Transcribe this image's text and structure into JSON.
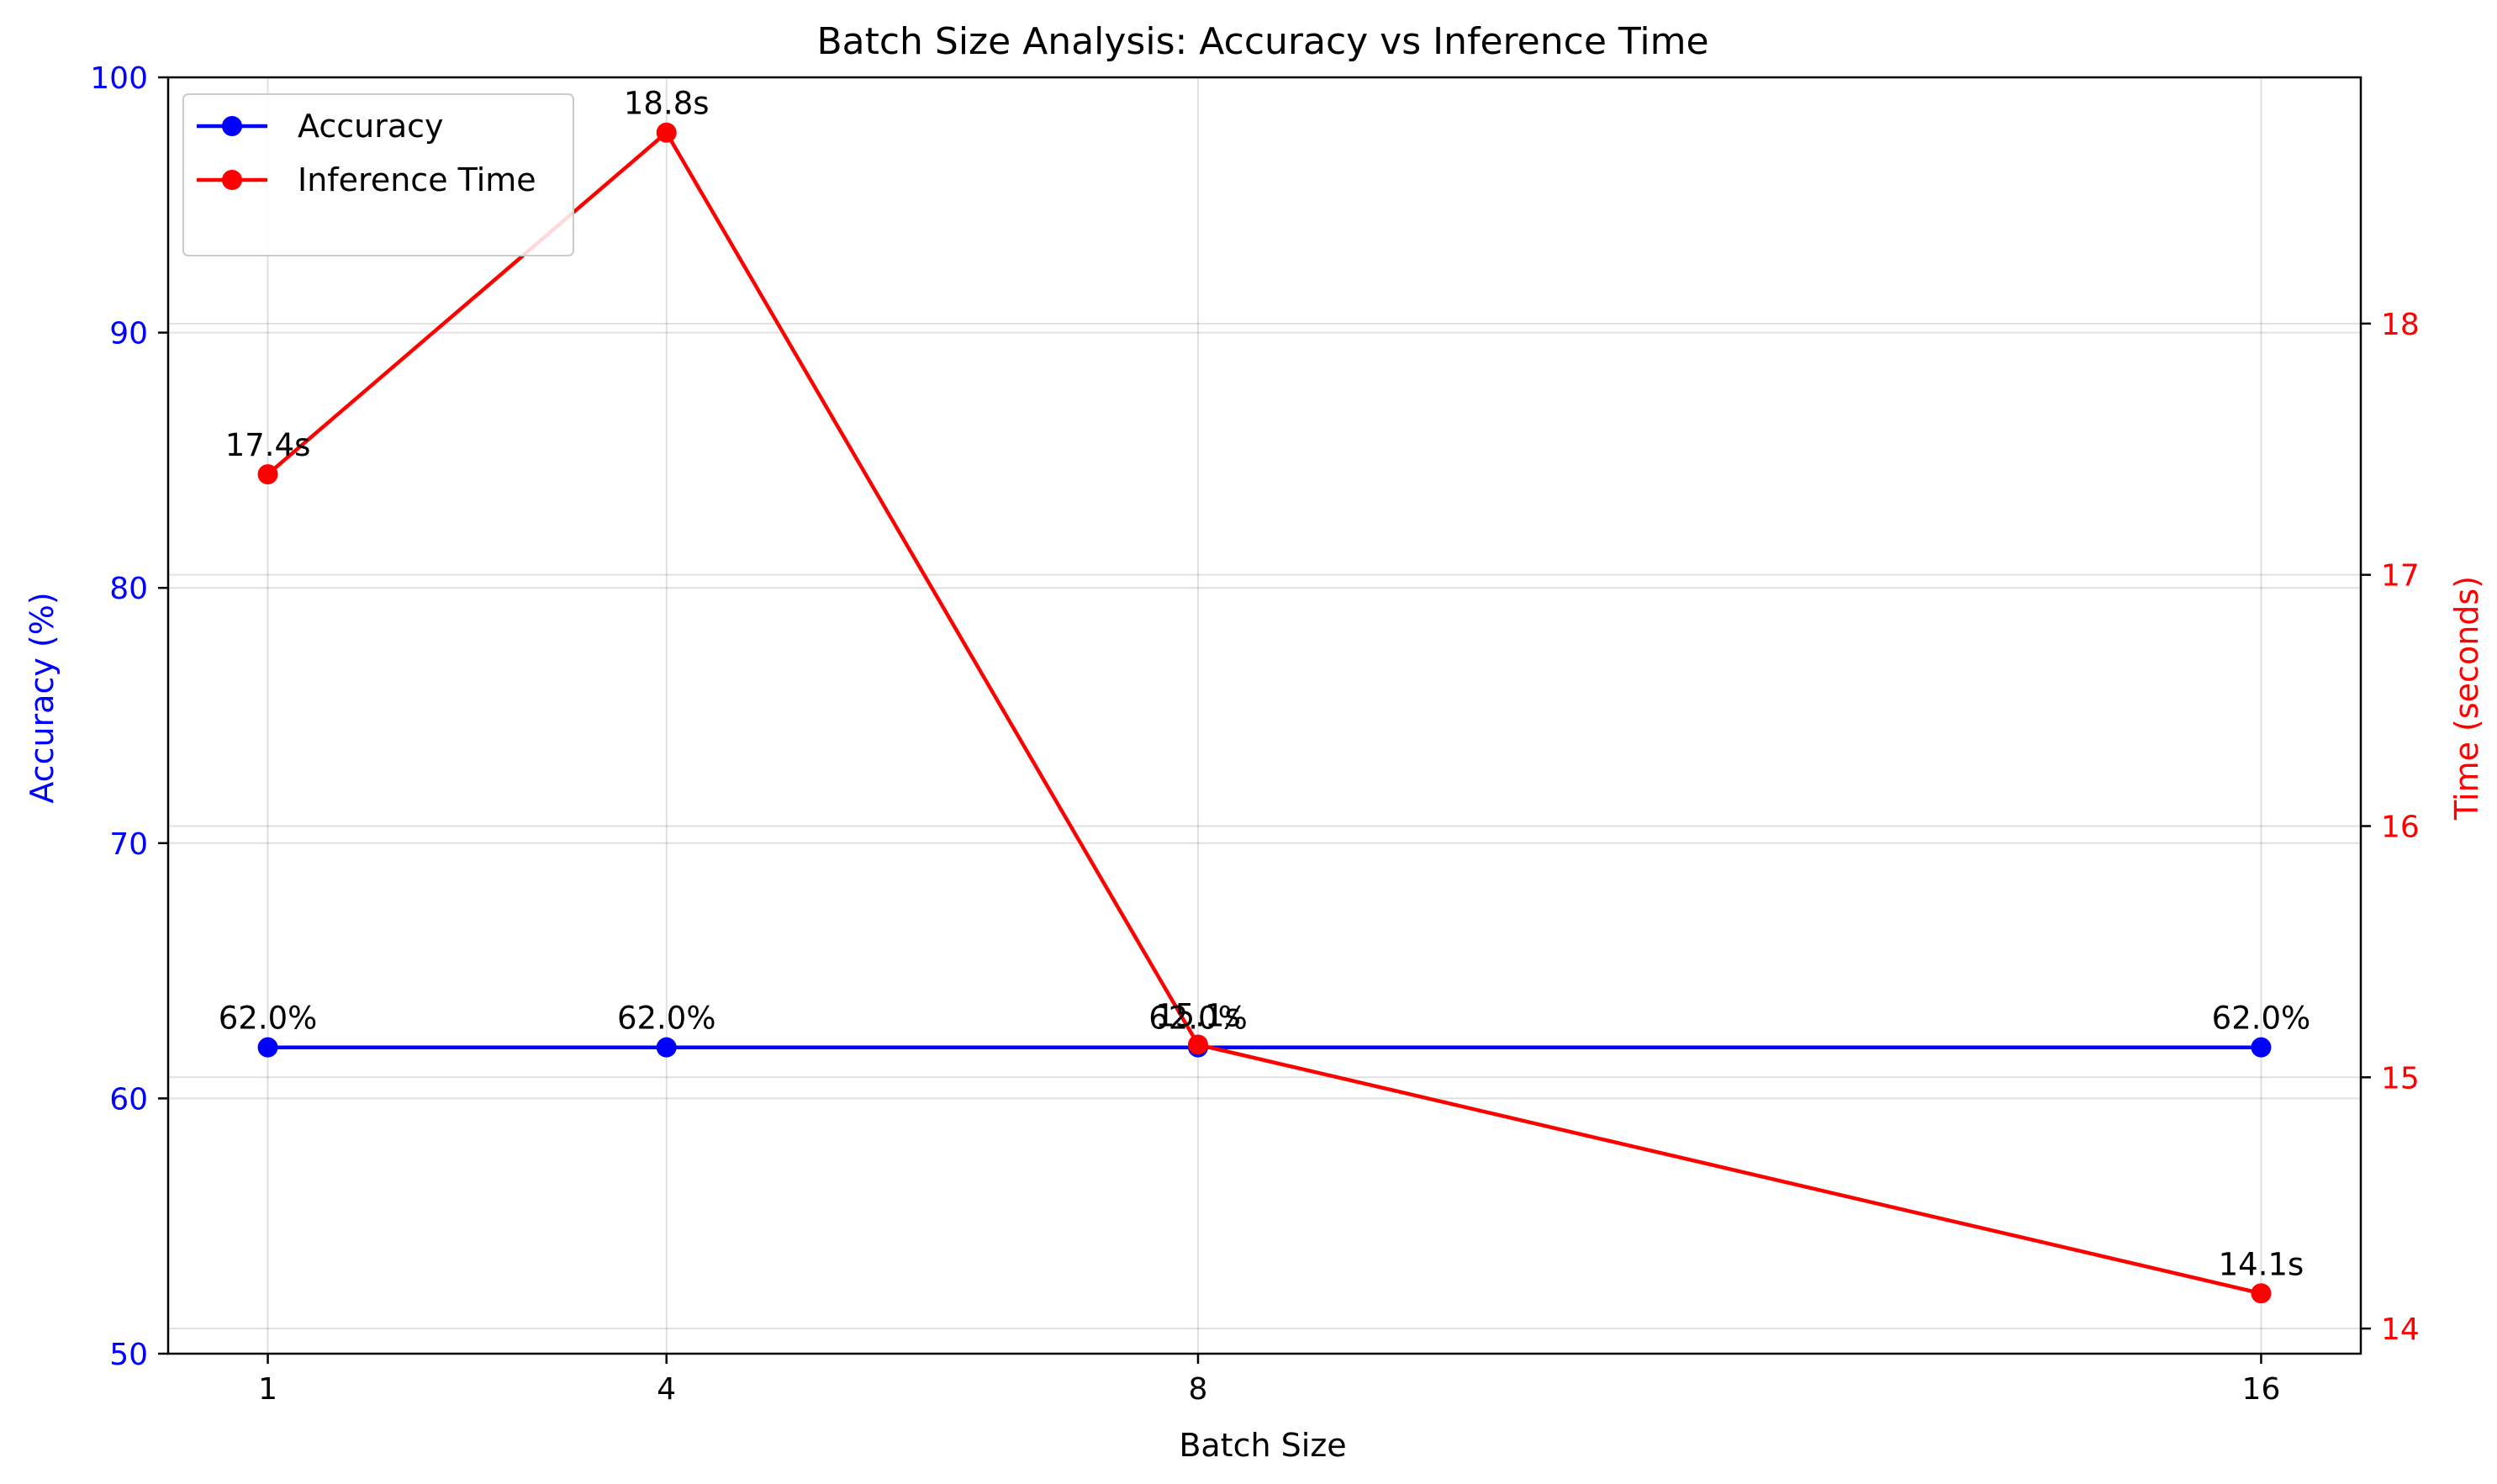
{
  "chart_data": {
    "type": "line",
    "title": "Batch Size Analysis: Accuracy vs Inference Time",
    "xlabel": "Batch Size",
    "x": [
      1,
      4,
      8,
      16
    ],
    "x_ticks": [
      "1",
      "4",
      "8",
      "16"
    ],
    "xlim": [
      0.25,
      16.75
    ],
    "y_left": {
      "label": "Accuracy (%)",
      "color": "#0000ff",
      "ylim": [
        50,
        100
      ],
      "ticks": [
        50,
        60,
        70,
        80,
        90,
        100
      ]
    },
    "y_right": {
      "label": "Time (seconds)",
      "color": "#ff0000",
      "ylim": [
        13.9,
        18.98
      ],
      "ticks": [
        14,
        15,
        16,
        17,
        18
      ]
    },
    "series": [
      {
        "name": "Accuracy",
        "axis": "left",
        "color": "#0000ff",
        "values": [
          62.0,
          62.0,
          62.0,
          62.0
        ],
        "labels": [
          "62.0%",
          "62.0%",
          "62.0%",
          "62.0%"
        ]
      },
      {
        "name": "Inference Time",
        "axis": "right",
        "color": "#ff0000",
        "values": [
          17.4,
          18.76,
          15.13,
          14.14
        ],
        "labels": [
          "17.4s",
          "18.8s",
          "15.1s",
          "14.1s"
        ]
      }
    ],
    "grid": true,
    "legend": "upper-left"
  }
}
